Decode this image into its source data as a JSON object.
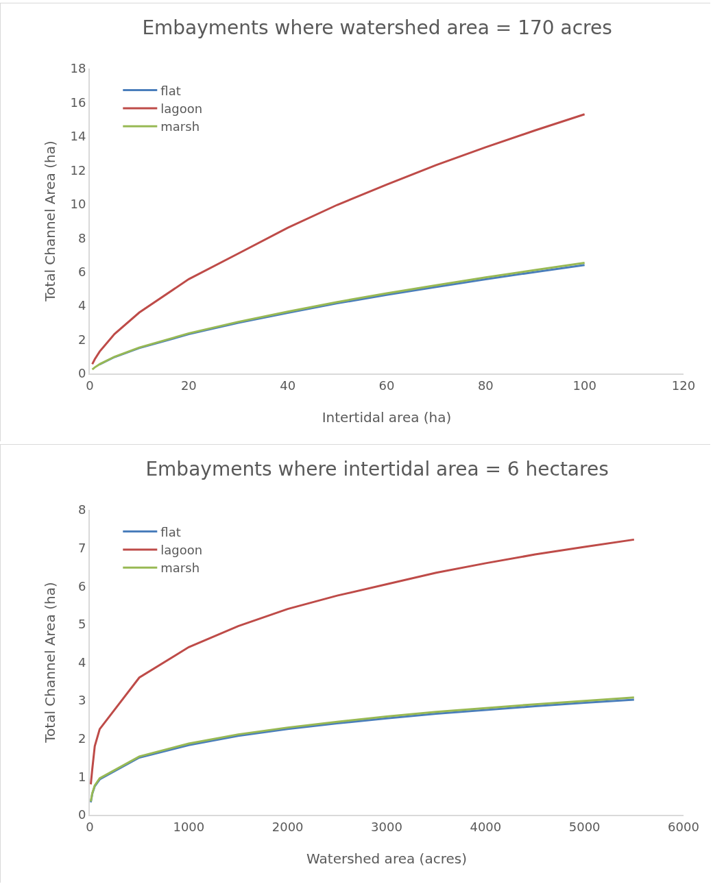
{
  "chart_data": [
    {
      "type": "line",
      "title": "Embayments where watershed area = 170 acres",
      "xlabel": "Intertidal area (ha)",
      "ylabel": "Total Channel Area (ha)",
      "x": [
        0.5,
        1,
        2,
        5,
        10,
        20,
        30,
        40,
        50,
        60,
        70,
        80,
        90,
        100
      ],
      "series": [
        {
          "name": "flat",
          "color": "#4a7ebb",
          "values": [
            null,
            null,
            0.54,
            0.97,
            1.5,
            2.32,
            2.99,
            3.58,
            4.14,
            4.64,
            5.11,
            5.56,
            5.99,
            6.4
          ]
        },
        {
          "name": "lagoon",
          "color": "#be4b48",
          "values": [
            0.55,
            0.84,
            1.3,
            2.33,
            3.6,
            5.57,
            7.08,
            8.6,
            9.95,
            11.15,
            12.3,
            13.35,
            14.35,
            15.3
          ]
        },
        {
          "name": "marsh",
          "color": "#98b954",
          "values": [
            0.24,
            0.36,
            0.55,
            0.99,
            1.53,
            2.37,
            3.05,
            3.65,
            4.22,
            4.73,
            5.21,
            5.67,
            6.11,
            6.53
          ]
        }
      ],
      "xlim": [
        0,
        120
      ],
      "xticks": [
        0,
        20,
        40,
        60,
        80,
        100,
        120
      ],
      "ylim": [
        0,
        18
      ],
      "yticks": [
        0,
        2,
        4,
        6,
        8,
        10,
        12,
        14,
        16,
        18
      ],
      "grid": false,
      "legend": "top left",
      "marker": "none",
      "line_style": "solid"
    },
    {
      "type": "line",
      "title": "Embayments where intertidal area = 6 hectares",
      "xlabel": "Watershed area (acres)",
      "ylabel": "Total Channel Area (ha)",
      "x": [
        10,
        25,
        50,
        100,
        500,
        1000,
        1500,
        2000,
        2500,
        3000,
        3500,
        4000,
        4500,
        5000,
        5500
      ],
      "series": [
        {
          "name": "flat",
          "color": "#4a7ebb",
          "values": [
            0.33,
            0.55,
            0.75,
            0.93,
            1.5,
            1.83,
            2.07,
            2.25,
            2.4,
            2.53,
            2.65,
            2.75,
            2.85,
            2.94,
            3.02
          ]
        },
        {
          "name": "lagoon",
          "color": "#be4b48",
          "values": [
            0.8,
            1.2,
            1.8,
            2.25,
            3.6,
            4.4,
            4.95,
            5.4,
            5.75,
            6.05,
            6.35,
            6.6,
            6.83,
            7.03,
            7.22
          ]
        },
        {
          "name": "marsh",
          "color": "#98b954",
          "values": [
            0.35,
            0.57,
            0.77,
            0.96,
            1.53,
            1.87,
            2.11,
            2.29,
            2.44,
            2.58,
            2.7,
            2.8,
            2.9,
            2.99,
            3.08
          ]
        }
      ],
      "xlim": [
        0,
        6000
      ],
      "xticks": [
        0,
        1000,
        2000,
        3000,
        4000,
        5000,
        6000
      ],
      "ylim": [
        0,
        8
      ],
      "yticks": [
        0,
        1,
        2,
        3,
        4,
        5,
        6,
        7,
        8
      ],
      "grid": false,
      "legend": "top left",
      "marker": "none",
      "line_style": "solid"
    }
  ]
}
